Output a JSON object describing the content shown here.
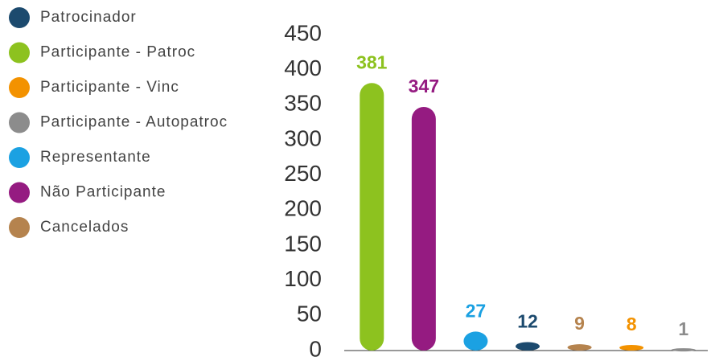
{
  "chart_data": {
    "type": "bar",
    "categories": [
      null,
      null,
      null,
      null,
      null,
      null,
      null
    ],
    "series": [
      {
        "name": "Patrocinador",
        "color": "#1c4a6e",
        "values": [
          null,
          null,
          null,
          12,
          null,
          null,
          null
        ]
      },
      {
        "name": "Participante - Patroc",
        "color": "#8dc21f",
        "values": [
          381,
          null,
          null,
          null,
          null,
          null,
          null
        ]
      },
      {
        "name": "Participante - Vinc",
        "color": "#f39200",
        "values": [
          null,
          null,
          null,
          null,
          null,
          8,
          null
        ]
      },
      {
        "name": "Participante - Autopatroc",
        "color": "#8c8c8c",
        "values": [
          null,
          null,
          null,
          null,
          null,
          null,
          1
        ]
      },
      {
        "name": "Representante",
        "color": "#1ba1e2",
        "values": [
          null,
          null,
          27,
          null,
          null,
          null,
          null
        ]
      },
      {
        "name": "Não Participante",
        "color": "#951b81",
        "values": [
          null,
          347,
          null,
          null,
          null,
          null,
          null
        ]
      },
      {
        "name": "Cancelados",
        "color": "#b5834e",
        "values": [
          null,
          null,
          null,
          null,
          9,
          null,
          null
        ]
      }
    ],
    "ylim": [
      0,
      450
    ],
    "yticks": [
      0,
      50,
      100,
      150,
      200,
      250,
      300,
      350,
      400,
      450
    ],
    "grid": false,
    "legend": "left"
  }
}
